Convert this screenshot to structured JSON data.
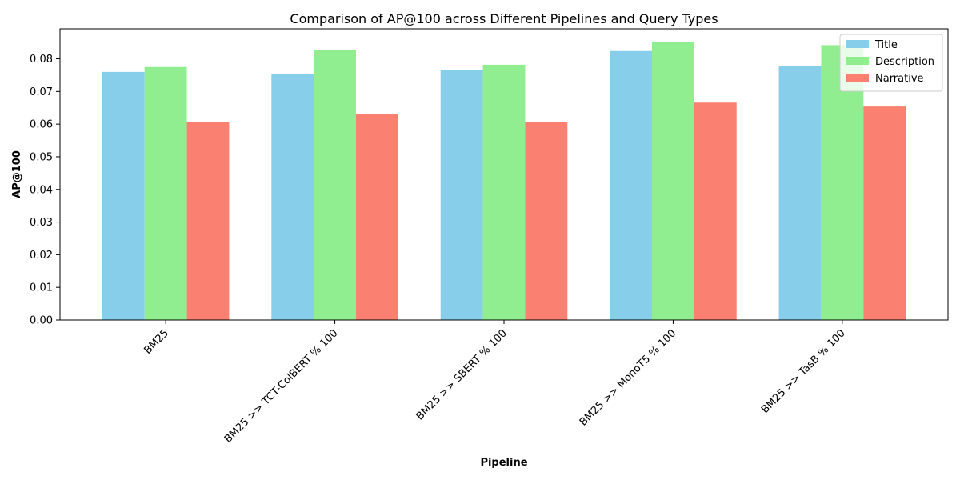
{
  "chart_data": {
    "type": "bar",
    "title": "Comparison of AP@100 across Different Pipelines and Query Types",
    "xlabel": "Pipeline",
    "ylabel": "AP@100",
    "categories": [
      "BM25",
      "BM25 >> TCT-ColBERT % 100",
      "BM25 >> SBERT % 100",
      "BM25 >> MonoT5 % 100",
      "BM25 >> TasB % 100"
    ],
    "series": [
      {
        "name": "Title",
        "color": "#87CEEB",
        "values": [
          0.076,
          0.0753,
          0.0765,
          0.0824,
          0.0778
        ]
      },
      {
        "name": "Description",
        "color": "#90EE90",
        "values": [
          0.0775,
          0.0826,
          0.0782,
          0.0852,
          0.0842
        ]
      },
      {
        "name": "Narrative",
        "color": "#FA8072",
        "values": [
          0.0607,
          0.0631,
          0.0607,
          0.0666,
          0.0654
        ]
      }
    ],
    "ylim": [
      0,
      0.0892
    ],
    "yticks": [
      "0.00",
      "0.01",
      "0.02",
      "0.03",
      "0.04",
      "0.05",
      "0.06",
      "0.07",
      "0.08"
    ],
    "grid": false,
    "legend_position": "top-right",
    "xtick_rotation": 45
  }
}
